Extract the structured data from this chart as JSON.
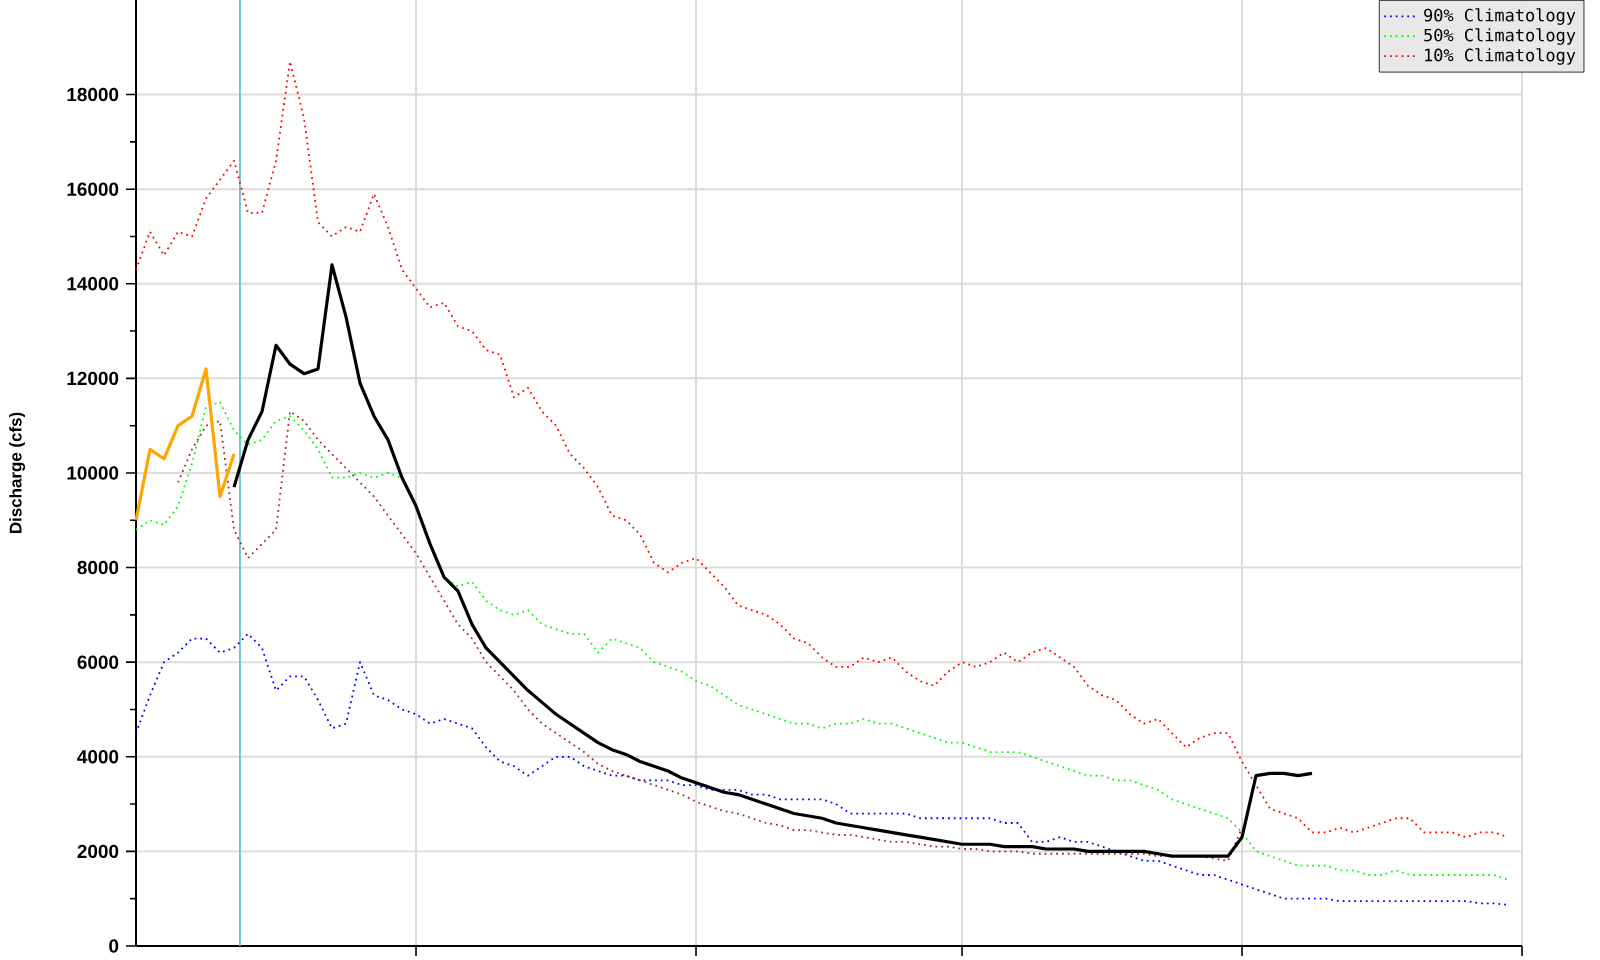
{
  "chart_data": {
    "type": "line",
    "ylabel": "Discharge (cfs)",
    "categories": [
      null,
      null,
      null,
      null,
      null,
      null,
      null,
      null,
      null,
      null,
      null,
      null,
      null,
      null,
      null,
      null,
      null,
      null,
      null,
      null,
      null,
      null,
      null,
      null,
      null,
      null,
      null,
      null,
      null,
      null,
      null,
      null,
      null,
      null,
      null,
      null,
      null,
      null,
      null,
      null,
      null,
      null,
      null,
      null,
      null,
      null,
      null,
      null,
      null,
      null,
      null,
      null,
      null,
      null,
      null,
      null,
      null,
      null,
      null,
      null,
      null,
      null,
      null,
      null,
      null,
      null,
      null,
      null,
      null,
      null,
      null,
      null,
      null,
      null,
      null,
      null,
      null,
      null,
      null,
      null,
      null,
      null,
      null,
      null,
      null,
      null,
      null,
      null,
      null,
      null,
      null,
      null,
      null,
      null,
      null,
      null,
      null,
      null,
      null,
      null
    ],
    "ylim": [
      0,
      20000
    ],
    "yticks": [
      0,
      2000,
      4000,
      6000,
      8000,
      10000,
      12000,
      14000,
      16000,
      18000
    ],
    "grid": true,
    "legend": "top right",
    "tick_labels": "y",
    "marker": "none",
    "series": [
      {
        "name": "90% Climatology",
        "color": "#0000ff",
        "line_style": "dotted",
        "values": [
          4500,
          5300,
          6000,
          6200,
          6500,
          6500,
          6200,
          6300,
          6600,
          6300,
          5400,
          5700,
          5700,
          5200,
          4600,
          4700,
          6000,
          5300,
          5200,
          5000,
          4900,
          4700,
          4800,
          4700,
          4600,
          4200,
          3900,
          3800,
          3600,
          3800,
          4000,
          4000,
          3800,
          3700,
          3600,
          3600,
          3500,
          3500,
          3500,
          3400,
          3400,
          3300,
          3300,
          3300,
          3200,
          3200,
          3100,
          3100,
          3100,
          3100,
          3000,
          2800,
          2800,
          2800,
          2800,
          2800,
          2700,
          2700,
          2700,
          2700,
          2700,
          2700,
          2600,
          2600,
          2200,
          2200,
          2300,
          2200,
          2200,
          2100,
          2000,
          1900,
          1800,
          1800,
          1700,
          1600,
          1500,
          1500,
          1400,
          1300,
          1200,
          1100,
          1000,
          1000,
          1000,
          1000,
          950,
          950,
          950,
          950,
          950,
          950,
          950,
          950,
          950,
          950,
          900,
          900,
          870,
          null
        ]
      },
      {
        "name": "50% Climatology",
        "color": "#00ff00",
        "line_style": "dotted",
        "values": [
          8800,
          9000,
          8900,
          9300,
          10200,
          11400,
          11500,
          10900,
          10600,
          10700,
          11100,
          11200,
          10900,
          10500,
          9900,
          9900,
          10000,
          9900,
          10000,
          9900,
          9300,
          8500,
          7800,
          7600,
          7700,
          7300,
          7100,
          7000,
          7100,
          6800,
          6700,
          6600,
          6600,
          6200,
          6500,
          6400,
          6300,
          6000,
          5900,
          5800,
          5600,
          5500,
          5300,
          5100,
          5000,
          4900,
          4800,
          4700,
          4700,
          4600,
          4700,
          4700,
          4800,
          4700,
          4700,
          4600,
          4500,
          4400,
          4300,
          4300,
          4200,
          4100,
          4100,
          4100,
          4000,
          3900,
          3800,
          3700,
          3600,
          3600,
          3500,
          3500,
          3400,
          3300,
          3100,
          3000,
          2900,
          2800,
          2700,
          2400,
          2000,
          1900,
          1800,
          1700,
          1700,
          1700,
          1600,
          1600,
          1500,
          1500,
          1600,
          1500,
          1500,
          1500,
          1500,
          1500,
          1500,
          1500,
          1400,
          null
        ]
      },
      {
        "name": "10% Climatology",
        "color": "#ff0000",
        "line_style": "dotted",
        "values": [
          14300,
          15100,
          14600,
          15100,
          15000,
          15800,
          16200,
          16600,
          15500,
          15500,
          16600,
          18700,
          17500,
          15300,
          15000,
          15200,
          15100,
          15900,
          15200,
          14300,
          13900,
          13500,
          13600,
          13100,
          13000,
          12600,
          12500,
          11600,
          11800,
          11300,
          11000,
          10400,
          10100,
          9700,
          9100,
          9000,
          8700,
          8100,
          7900,
          8100,
          8200,
          7900,
          7600,
          7200,
          7100,
          7000,
          6800,
          6500,
          6400,
          6100,
          5900,
          5900,
          6100,
          6000,
          6100,
          5800,
          5600,
          5500,
          5800,
          6000,
          5900,
          6000,
          6200,
          6000,
          6200,
          6300,
          6100,
          5900,
          5500,
          5300,
          5200,
          4900,
          4700,
          4800,
          4500,
          4200,
          4400,
          4500,
          4500,
          3900,
          3400,
          2900,
          2800,
          2700,
          2400,
          2400,
          2500,
          2400,
          2500,
          2600,
          2700,
          2700,
          2400,
          2400,
          2400,
          2300,
          2400,
          2400,
          2300,
          null
        ]
      },
      {
        "color": "#a52a2a",
        "line_style": "dotted",
        "values": [
          null,
          null,
          null,
          9800,
          10500,
          11000,
          11100,
          8800,
          8200,
          8500,
          8800,
          11300,
          11100,
          10700,
          10400,
          10100,
          9800,
          9500,
          9100,
          8700,
          8300,
          7800,
          7300,
          6800,
          6500,
          6000,
          5700,
          5400,
          5000,
          4700,
          4500,
          4300,
          4100,
          3850,
          3700,
          3600,
          3500,
          3400,
          3300,
          3200,
          3050,
          2950,
          2850,
          2800,
          2700,
          2600,
          2550,
          2450,
          2450,
          2400,
          2350,
          2350,
          2300,
          2250,
          2200,
          2200,
          2150,
          2100,
          2100,
          2050,
          2050,
          2000,
          2000,
          2000,
          1950,
          1950,
          1950,
          1950,
          1950,
          1950,
          1950,
          1950,
          1950,
          1900,
          1900,
          1900,
          1900,
          1850,
          1800,
          2500,
          null,
          null,
          null,
          null,
          null,
          null,
          null,
          null,
          null,
          null,
          null,
          null,
          null,
          null,
          null,
          null,
          null,
          null,
          null,
          null
        ]
      },
      {
        "color": "#ffa500",
        "line_style": "solid",
        "values": [
          9000,
          10500,
          10300,
          11000,
          11200,
          12200,
          9500,
          10400,
          null,
          null,
          null,
          null,
          null,
          null,
          null,
          null,
          null,
          null,
          null,
          null,
          null,
          null,
          null,
          null,
          null,
          null,
          null,
          null,
          null,
          null,
          null,
          null,
          null,
          null,
          null,
          null,
          null,
          null,
          null,
          null,
          null,
          null,
          null,
          null,
          null,
          null,
          null,
          null,
          null,
          null,
          null,
          null,
          null,
          null,
          null,
          null,
          null,
          null,
          null,
          null,
          null,
          null,
          null,
          null,
          null,
          null,
          null,
          null,
          null,
          null,
          null,
          null,
          null,
          null,
          null,
          null,
          null,
          null,
          null,
          null,
          null,
          null,
          null,
          null,
          null,
          null,
          null,
          null,
          null,
          null,
          null,
          null,
          null,
          null,
          null,
          null,
          null,
          null,
          null,
          null
        ]
      },
      {
        "color": "#000000",
        "line_style": "solid",
        "values": [
          null,
          null,
          null,
          null,
          null,
          null,
          null,
          9700,
          10700,
          11300,
          12700,
          12300,
          12100,
          12200,
          14400,
          13300,
          11900,
          11200,
          10700,
          9900,
          9300,
          8500,
          7800,
          7500,
          6800,
          6300,
          6000,
          5700,
          5400,
          5150,
          4900,
          4700,
          4500,
          4300,
          4150,
          4050,
          3900,
          3800,
          3700,
          3550,
          3450,
          3350,
          3250,
          3200,
          3100,
          3000,
          2900,
          2800,
          2750,
          2700,
          2600,
          2550,
          2500,
          2450,
          2400,
          2350,
          2300,
          2250,
          2200,
          2150,
          2150,
          2150,
          2100,
          2100,
          2100,
          2050,
          2050,
          2050,
          2000,
          2000,
          2000,
          2000,
          2000,
          1950,
          1900,
          1900,
          1900,
          1900,
          1900,
          2300,
          3600,
          3650,
          3650,
          3600,
          3650,
          null,
          null,
          null,
          null,
          null,
          null,
          null,
          null,
          null,
          null,
          null,
          null,
          null,
          null,
          null
        ]
      }
    ]
  }
}
